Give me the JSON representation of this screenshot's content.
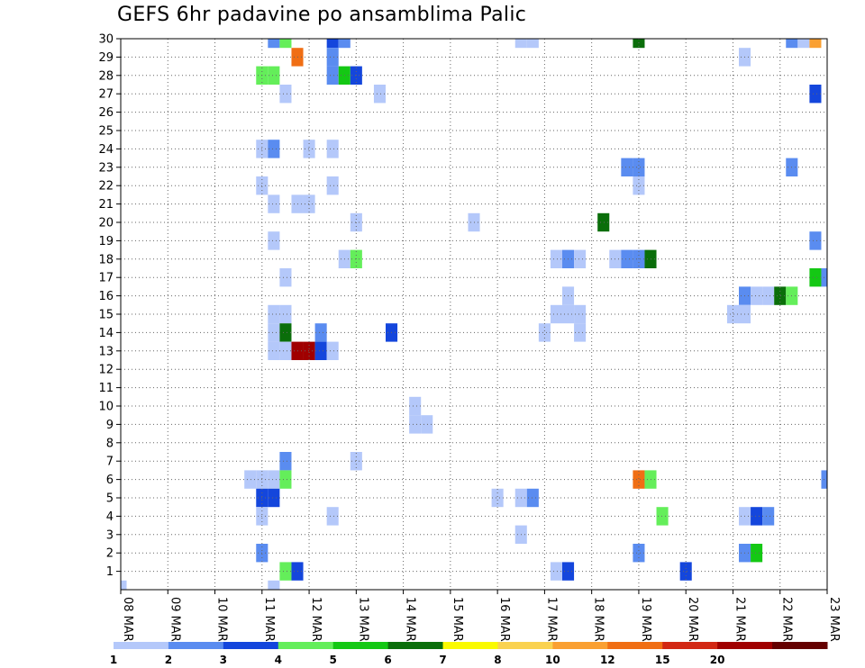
{
  "chart_data": {
    "type": "heatmap",
    "title": "GEFS 6hr padavine po ansamblima Palic",
    "x_tick_labels": [
      "08 MAR",
      "09 MAR",
      "10 MAR",
      "11 MAR",
      "12 MAR",
      "13 MAR",
      "14 MAR",
      "15 MAR",
      "16 MAR",
      "17 MAR",
      "18 MAR",
      "19 MAR",
      "20 MAR",
      "21 MAR",
      "22 MAR",
      "23 MAR"
    ],
    "y_tick_labels": [
      "1",
      "2",
      "3",
      "4",
      "5",
      "6",
      "7",
      "8",
      "9",
      "10",
      "11",
      "12",
      "13",
      "14",
      "15",
      "16",
      "17",
      "18",
      "19",
      "20",
      "21",
      "22",
      "23",
      "24",
      "25",
      "26",
      "27",
      "28",
      "29",
      "30"
    ],
    "xlim_steps": [
      0,
      60
    ],
    "ylim_members": [
      0,
      30
    ],
    "grid": true,
    "colorbar": {
      "labels": [
        "1",
        "2",
        "3",
        "4",
        "5",
        "6",
        "7",
        "8",
        "10",
        "12",
        "15",
        "20"
      ],
      "colors": [
        "#b4c8fa",
        "#5a8cf0",
        "#1446dc",
        "#64ee5a",
        "#14c814",
        "#0a6e0a",
        "#fafa00",
        "#fad250",
        "#faa032",
        "#f06e14",
        "#d22814",
        "#a00000",
        "#640000"
      ]
    },
    "cells": [
      {
        "t": 0,
        "m": 0,
        "c": 0
      },
      {
        "t": 13,
        "m": 30,
        "c": 1
      },
      {
        "t": 14,
        "m": 30,
        "c": 3
      },
      {
        "t": 18,
        "m": 30,
        "c": 2
      },
      {
        "t": 19,
        "m": 30,
        "c": 1
      },
      {
        "t": 34,
        "m": 30,
        "c": 0
      },
      {
        "t": 35,
        "m": 30,
        "c": 0
      },
      {
        "t": 44,
        "m": 30,
        "c": 5
      },
      {
        "t": 57,
        "m": 30,
        "c": 1
      },
      {
        "t": 58,
        "m": 30,
        "c": 0
      },
      {
        "t": 59,
        "m": 30,
        "c": 8
      },
      {
        "t": 15,
        "m": 29,
        "c": 9
      },
      {
        "t": 18,
        "m": 29,
        "c": 1
      },
      {
        "t": 53,
        "m": 29,
        "c": 0
      },
      {
        "t": 12,
        "m": 28,
        "c": 3
      },
      {
        "t": 13,
        "m": 28,
        "c": 3
      },
      {
        "t": 18,
        "m": 28,
        "c": 1
      },
      {
        "t": 19,
        "m": 28,
        "c": 4
      },
      {
        "t": 20,
        "m": 28,
        "c": 2
      },
      {
        "t": 14,
        "m": 27,
        "c": 0
      },
      {
        "t": 22,
        "m": 27,
        "c": 0
      },
      {
        "t": 59,
        "m": 27,
        "c": 2
      },
      {
        "t": 12,
        "m": 24,
        "c": 0
      },
      {
        "t": 13,
        "m": 24,
        "c": 1
      },
      {
        "t": 16,
        "m": 24,
        "c": 0
      },
      {
        "t": 18,
        "m": 24,
        "c": 0
      },
      {
        "t": 43,
        "m": 23,
        "c": 1
      },
      {
        "t": 44,
        "m": 23,
        "c": 1
      },
      {
        "t": 57,
        "m": 23,
        "c": 1
      },
      {
        "t": 12,
        "m": 22,
        "c": 0
      },
      {
        "t": 18,
        "m": 22,
        "c": 0
      },
      {
        "t": 44,
        "m": 22,
        "c": 0
      },
      {
        "t": 13,
        "m": 21,
        "c": 0
      },
      {
        "t": 15,
        "m": 21,
        "c": 0
      },
      {
        "t": 16,
        "m": 21,
        "c": 0
      },
      {
        "t": 20,
        "m": 20,
        "c": 0
      },
      {
        "t": 30,
        "m": 20,
        "c": 0
      },
      {
        "t": 41,
        "m": 20,
        "c": 5
      },
      {
        "t": 13,
        "m": 19,
        "c": 0
      },
      {
        "t": 59,
        "m": 19,
        "c": 1
      },
      {
        "t": 19,
        "m": 18,
        "c": 0
      },
      {
        "t": 20,
        "m": 18,
        "c": 3
      },
      {
        "t": 37,
        "m": 18,
        "c": 0
      },
      {
        "t": 38,
        "m": 18,
        "c": 1
      },
      {
        "t": 39,
        "m": 18,
        "c": 0
      },
      {
        "t": 42,
        "m": 18,
        "c": 0
      },
      {
        "t": 43,
        "m": 18,
        "c": 1
      },
      {
        "t": 44,
        "m": 18,
        "c": 1
      },
      {
        "t": 45,
        "m": 18,
        "c": 5
      },
      {
        "t": 14,
        "m": 17,
        "c": 0
      },
      {
        "t": 59,
        "m": 17,
        "c": 4
      },
      {
        "t": 60,
        "m": 17,
        "c": 1
      },
      {
        "t": 38,
        "m": 16,
        "c": 0
      },
      {
        "t": 53,
        "m": 16,
        "c": 1
      },
      {
        "t": 54,
        "m": 16,
        "c": 0
      },
      {
        "t": 55,
        "m": 16,
        "c": 0
      },
      {
        "t": 56,
        "m": 16,
        "c": 5
      },
      {
        "t": 57,
        "m": 16,
        "c": 3
      },
      {
        "t": 13,
        "m": 15,
        "c": 0
      },
      {
        "t": 14,
        "m": 15,
        "c": 0
      },
      {
        "t": 37,
        "m": 15,
        "c": 0
      },
      {
        "t": 38,
        "m": 15,
        "c": 0
      },
      {
        "t": 39,
        "m": 15,
        "c": 0
      },
      {
        "t": 52,
        "m": 15,
        "c": 0
      },
      {
        "t": 53,
        "m": 15,
        "c": 0
      },
      {
        "t": 13,
        "m": 14,
        "c": 0
      },
      {
        "t": 14,
        "m": 14,
        "c": 5
      },
      {
        "t": 17,
        "m": 14,
        "c": 1
      },
      {
        "t": 23,
        "m": 14,
        "c": 2
      },
      {
        "t": 36,
        "m": 14,
        "c": 0
      },
      {
        "t": 39,
        "m": 14,
        "c": 0
      },
      {
        "t": 13,
        "m": 13,
        "c": 0
      },
      {
        "t": 14,
        "m": 13,
        "c": 0
      },
      {
        "t": 15,
        "m": 13,
        "c": 11
      },
      {
        "t": 16,
        "m": 13,
        "c": 11
      },
      {
        "t": 17,
        "m": 13,
        "c": 2
      },
      {
        "t": 18,
        "m": 13,
        "c": 0
      },
      {
        "t": 25,
        "m": 10,
        "c": 0
      },
      {
        "t": 25,
        "m": 9,
        "c": 0
      },
      {
        "t": 26,
        "m": 9,
        "c": 0
      },
      {
        "t": 14,
        "m": 7,
        "c": 1
      },
      {
        "t": 20,
        "m": 7,
        "c": 0
      },
      {
        "t": 11,
        "m": 6,
        "c": 0
      },
      {
        "t": 12,
        "m": 6,
        "c": 0
      },
      {
        "t": 13,
        "m": 6,
        "c": 0
      },
      {
        "t": 14,
        "m": 6,
        "c": 3
      },
      {
        "t": 44,
        "m": 6,
        "c": 9
      },
      {
        "t": 45,
        "m": 6,
        "c": 3
      },
      {
        "t": 60,
        "m": 6,
        "c": 1
      },
      {
        "t": 12,
        "m": 5,
        "c": 2
      },
      {
        "t": 13,
        "m": 5,
        "c": 2
      },
      {
        "t": 32,
        "m": 5,
        "c": 0
      },
      {
        "t": 34,
        "m": 5,
        "c": 0
      },
      {
        "t": 35,
        "m": 5,
        "c": 1
      },
      {
        "t": 12,
        "m": 4,
        "c": 0
      },
      {
        "t": 18,
        "m": 4,
        "c": 0
      },
      {
        "t": 46,
        "m": 4,
        "c": 3
      },
      {
        "t": 53,
        "m": 4,
        "c": 0
      },
      {
        "t": 54,
        "m": 4,
        "c": 2
      },
      {
        "t": 55,
        "m": 4,
        "c": 1
      },
      {
        "t": 34,
        "m": 3,
        "c": 0
      },
      {
        "t": 12,
        "m": 2,
        "c": 1
      },
      {
        "t": 44,
        "m": 2,
        "c": 1
      },
      {
        "t": 53,
        "m": 2,
        "c": 1
      },
      {
        "t": 54,
        "m": 2,
        "c": 4
      },
      {
        "t": 14,
        "m": 1,
        "c": 3
      },
      {
        "t": 15,
        "m": 1,
        "c": 2
      },
      {
        "t": 37,
        "m": 1,
        "c": 0
      },
      {
        "t": 38,
        "m": 1,
        "c": 2
      },
      {
        "t": 48,
        "m": 1,
        "c": 2
      },
      {
        "t": 13,
        "m": 0,
        "c": 0
      }
    ]
  }
}
